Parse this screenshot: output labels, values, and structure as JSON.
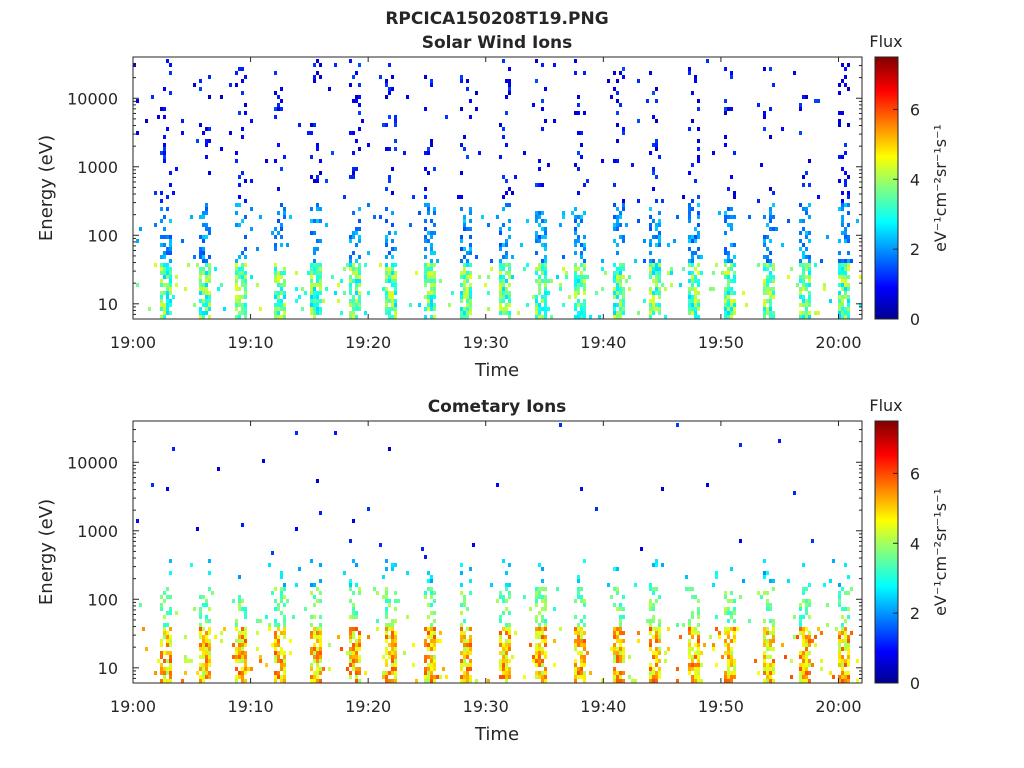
{
  "figure": {
    "title": "RPCICA150208T19.PNG"
  },
  "chart_data": [
    {
      "type": "heatmap",
      "title": "Solar Wind Ions",
      "xlabel": "Time",
      "ylabel": "Energy (eV)",
      "x_ticks": [
        "19:00",
        "19:10",
        "19:20",
        "19:30",
        "19:40",
        "19:50",
        "20:00"
      ],
      "x_range_minutes": [
        0,
        62
      ],
      "y_scale": "log",
      "y_ticks": [
        10,
        100,
        1000,
        10000
      ],
      "y_tick_labels": [
        "10",
        "100",
        "1000",
        "10000"
      ],
      "y_range": [
        6,
        40000
      ],
      "colorbar": {
        "title": "Flux",
        "unit_label": "eV⁻¹cm⁻²sr⁻¹s⁻¹",
        "ticks": [
          "0",
          "2",
          "4",
          "6"
        ],
        "range": [
          0,
          7.5
        ],
        "colormap": "jet"
      },
      "pattern": {
        "sweep_period_minutes": 3.2,
        "bands": [
          {
            "energy_range_eV": [
              6,
              40
            ],
            "flux": [
              2.5,
              4.5
            ]
          },
          {
            "energy_range_eV": [
              40,
              300
            ],
            "flux": [
              1.5,
              2.5
            ]
          },
          {
            "energy_range_eV": [
              300,
              40000
            ],
            "flux": [
              0.5,
              1.5
            ]
          }
        ]
      }
    },
    {
      "type": "heatmap",
      "title": "Cometary Ions",
      "xlabel": "Time",
      "ylabel": "Energy (eV)",
      "x_ticks": [
        "19:00",
        "19:10",
        "19:20",
        "19:30",
        "19:40",
        "19:50",
        "20:00"
      ],
      "x_range_minutes": [
        0,
        62
      ],
      "y_scale": "log",
      "y_ticks": [
        10,
        100,
        1000,
        10000
      ],
      "y_tick_labels": [
        "10",
        "100",
        "1000",
        "10000"
      ],
      "y_range": [
        6,
        40000
      ],
      "colorbar": {
        "title": "Flux",
        "unit_label": "eV⁻¹cm⁻²sr⁻¹s⁻¹",
        "ticks": [
          "0",
          "2",
          "4",
          "6"
        ],
        "range": [
          0,
          7.5
        ],
        "colormap": "jet"
      },
      "pattern": {
        "sweep_period_minutes": 3.2,
        "bands": [
          {
            "energy_range_eV": [
              6,
              40
            ],
            "flux": [
              4.0,
              6.0
            ]
          },
          {
            "energy_range_eV": [
              40,
              150
            ],
            "flux": [
              3.0,
              4.2
            ]
          },
          {
            "energy_range_eV": [
              150,
              400
            ],
            "flux": [
              2.0,
              3.0
            ]
          }
        ]
      }
    }
  ]
}
